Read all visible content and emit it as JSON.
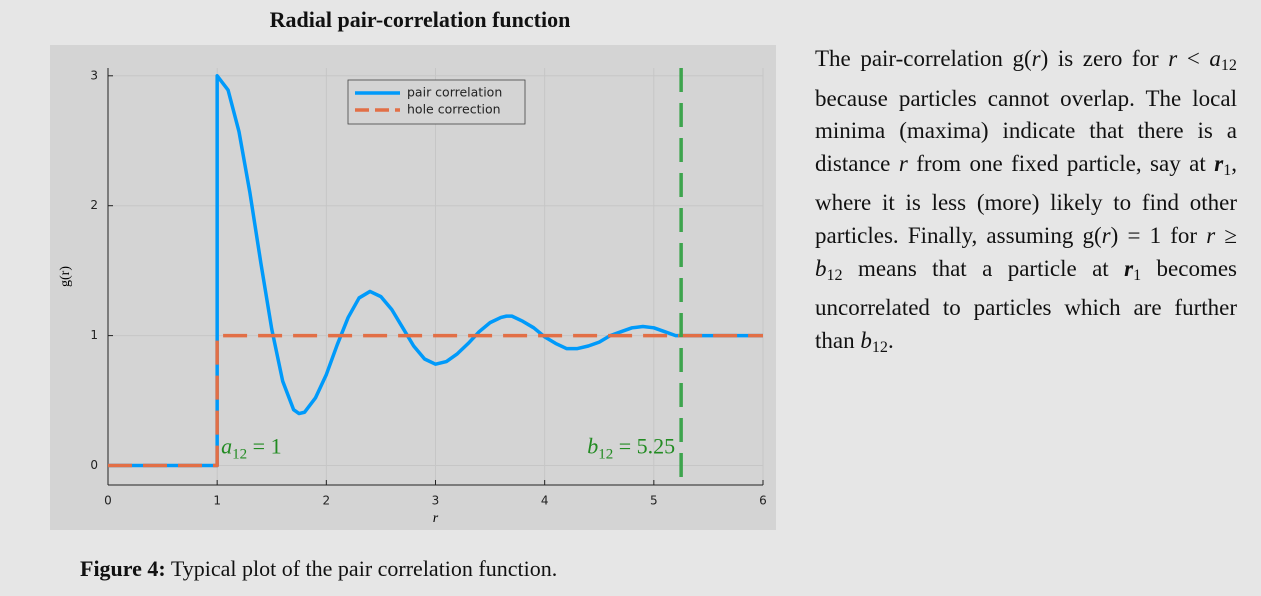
{
  "chart_data": {
    "type": "line",
    "title": "Radial pair-correlation function",
    "xlabel": "r",
    "ylabel": "g(r)",
    "xlim": [
      0,
      6
    ],
    "ylim": [
      -0.15,
      3.06
    ],
    "xticks": [
      0,
      1,
      2,
      3,
      4,
      5,
      6
    ],
    "yticks": [
      0,
      1,
      2,
      3
    ],
    "grid": true,
    "legend": "top",
    "series": [
      {
        "name": "pair correlation",
        "color": "#009afa",
        "style": "solid",
        "x": [
          0,
          1,
          1,
          1.1,
          1.2,
          1.3,
          1.4,
          1.5,
          1.6,
          1.7,
          1.75,
          1.8,
          1.9,
          2.0,
          2.1,
          2.2,
          2.3,
          2.4,
          2.5,
          2.6,
          2.7,
          2.8,
          2.9,
          3.0,
          3.1,
          3.2,
          3.3,
          3.4,
          3.5,
          3.6,
          3.65,
          3.7,
          3.8,
          3.9,
          4.0,
          4.1,
          4.2,
          4.25,
          4.3,
          4.4,
          4.5,
          4.6,
          4.7,
          4.8,
          4.9,
          5.0,
          5.1,
          5.2,
          5.25,
          6
        ],
        "values": [
          0,
          0,
          3,
          2.89,
          2.57,
          2.1,
          1.56,
          1.05,
          0.65,
          0.43,
          0.4,
          0.41,
          0.52,
          0.7,
          0.93,
          1.14,
          1.29,
          1.34,
          1.3,
          1.2,
          1.06,
          0.92,
          0.82,
          0.78,
          0.8,
          0.86,
          0.94,
          1.03,
          1.1,
          1.14,
          1.15,
          1.15,
          1.11,
          1.06,
          0.99,
          0.94,
          0.9,
          0.9,
          0.9,
          0.92,
          0.95,
          1.0,
          1.03,
          1.06,
          1.07,
          1.06,
          1.03,
          1.0,
          1.0,
          1.0
        ]
      },
      {
        "name": "hole correction",
        "color": "#e26f46",
        "style": "dashed",
        "x": [
          0,
          1,
          1,
          6
        ],
        "values": [
          0,
          0,
          1,
          1
        ]
      }
    ],
    "vlines": [
      {
        "x": 5.25,
        "color": "#3da44d"
      }
    ],
    "annotation_color": "#228b22",
    "annotations": [
      {
        "segments": [
          {
            "text": "a",
            "style": "i"
          },
          {
            "text": "12",
            "style": "sub"
          },
          {
            "text": " = 1"
          }
        ]
      },
      {
        "segments": [
          {
            "text": "b",
            "style": "i"
          },
          {
            "text": "12",
            "style": "sub"
          },
          {
            "text": " = 5.25"
          }
        ]
      }
    ]
  },
  "caption": {
    "label": "Figure 4:",
    "text": " Typical plot of the pair correlation function."
  },
  "paragraph": [
    {
      "text": "The pair-correlation g("
    },
    {
      "text": "r",
      "style": "i"
    },
    {
      "text": ") is zero for "
    },
    {
      "text": "r",
      "style": "i"
    },
    {
      "text": " < "
    },
    {
      "text": "a",
      "style": "i"
    },
    {
      "text": "12",
      "style": "sub"
    },
    {
      "text": " because particles cannot overlap. The local minima (maxima) indicate that there is a distance "
    },
    {
      "text": "r",
      "style": "i"
    },
    {
      "text": " from one fixed particle, say at "
    },
    {
      "text": "r",
      "style": "bi"
    },
    {
      "text": "1",
      "style": "sub"
    },
    {
      "text": ", where it is less (more) likely to find other particles. Finally, assuming g("
    },
    {
      "text": "r",
      "style": "i"
    },
    {
      "text": ") = 1 for "
    },
    {
      "text": "r",
      "style": "i"
    },
    {
      "text": " ≥ "
    },
    {
      "text": "b",
      "style": "i"
    },
    {
      "text": "12",
      "style": "sub"
    },
    {
      "text": " means that a particle at "
    },
    {
      "text": "r",
      "style": "bi"
    },
    {
      "text": "1",
      "style": "sub"
    },
    {
      "text": " becomes uncorrelated to particles which are further than "
    },
    {
      "text": "b",
      "style": "i"
    },
    {
      "text": "12",
      "style": "sub"
    },
    {
      "text": "."
    }
  ]
}
